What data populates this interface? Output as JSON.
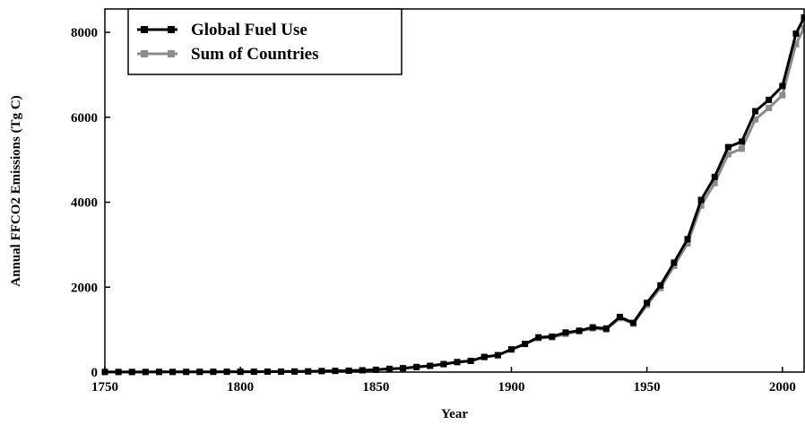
{
  "chart_data": {
    "type": "line",
    "x_label": "Year",
    "y_label": "Annual FFCO2 Emissions (Tg C)",
    "x": [
      1750,
      1755,
      1760,
      1765,
      1770,
      1775,
      1780,
      1785,
      1790,
      1795,
      1800,
      1805,
      1810,
      1815,
      1820,
      1825,
      1830,
      1835,
      1840,
      1845,
      1850,
      1855,
      1860,
      1865,
      1870,
      1875,
      1880,
      1885,
      1890,
      1895,
      1900,
      1905,
      1910,
      1915,
      1920,
      1925,
      1930,
      1935,
      1940,
      1945,
      1950,
      1955,
      1960,
      1965,
      1970,
      1975,
      1980,
      1985,
      1990,
      1995,
      2000,
      2005,
      2008
    ],
    "series": [
      {
        "name": "Global Fuel Use",
        "color": "#000000",
        "values": [
          3,
          3,
          3,
          3,
          4,
          4,
          5,
          6,
          7,
          8,
          8,
          9,
          10,
          12,
          14,
          17,
          24,
          29,
          33,
          43,
          54,
          76,
          91,
          120,
          147,
          188,
          236,
          264,
          356,
          398,
          534,
          663,
          819,
          836,
          932,
          975,
          1053,
          1027,
          1299,
          1160,
          1630,
          2043,
          2577,
          3130,
          4053,
          4596,
          5297,
          5428,
          6143,
          6410,
          6735,
          7970,
          8350
        ]
      },
      {
        "name": "Sum of Countries",
        "color": "#8c8c8c",
        "values": [
          3,
          3,
          3,
          3,
          4,
          4,
          5,
          6,
          7,
          8,
          8,
          9,
          10,
          12,
          14,
          17,
          24,
          29,
          33,
          43,
          54,
          76,
          91,
          120,
          147,
          188,
          236,
          264,
          356,
          398,
          534,
          663,
          800,
          820,
          900,
          960,
          1030,
          1000,
          1270,
          1140,
          1580,
          1980,
          2500,
          3030,
          3920,
          4450,
          5130,
          5260,
          5950,
          6220,
          6520,
          7720,
          8100
        ]
      }
    ],
    "xlim": [
      1750,
      2008
    ],
    "xticks": [
      1750,
      1800,
      1850,
      1900,
      1950,
      2000
    ],
    "ylim": [
      0,
      8550
    ],
    "yticks": [
      0,
      2000,
      4000,
      6000,
      8000
    ],
    "legend": "upper left"
  }
}
